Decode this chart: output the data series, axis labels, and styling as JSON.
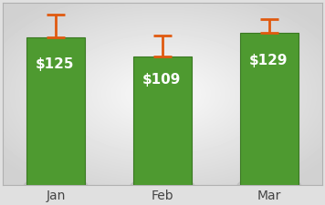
{
  "categories": [
    "Jan",
    "Feb",
    "Mar"
  ],
  "values": [
    125,
    109,
    129
  ],
  "errors": [
    20,
    18,
    12
  ],
  "bar_color": "#4e9a30",
  "bar_edge_color": "#3a7822",
  "error_color": "#e05a10",
  "label_color": "#ffffff",
  "label_prefix": "$",
  "label_fontsize": 11,
  "tick_fontsize": 10,
  "bar_width": 0.55,
  "ylim": [
    0,
    155
  ],
  "xlim": [
    -0.5,
    2.5
  ],
  "border_color": "#b0b0b0",
  "shadow_color": "#aaaaaa"
}
